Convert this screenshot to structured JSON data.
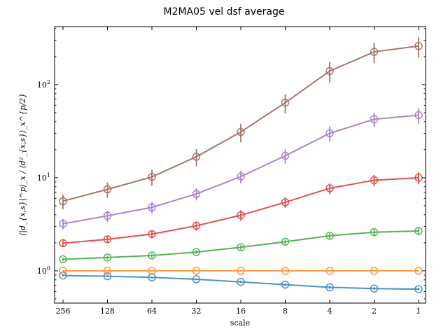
{
  "chart_data": {
    "type": "line",
    "title": "M2MA05 vel dsf average",
    "xlabel": "scale",
    "ylabel": "⟨|d_{x,s}|^p⟩_x / ⟨d²_{x,s}⟩_x^{p/2}",
    "x": [
      256,
      128,
      64,
      32,
      16,
      8,
      4,
      2,
      1
    ],
    "x_tick_labels": [
      "256",
      "128",
      "64",
      "32",
      "16",
      "8",
      "4",
      "2",
      "1"
    ],
    "x_scale": "log2-reversed",
    "y_scale": "log",
    "y_tick_labels": [
      {
        "value": 1,
        "label": "10^0"
      },
      {
        "value": 10,
        "label": "10^1"
      },
      {
        "value": 100,
        "label": "10^2"
      }
    ],
    "ylim": [
      0.45,
      420
    ],
    "series": [
      {
        "color": "#1f77b4",
        "values": [
          0.89,
          0.875,
          0.85,
          0.81,
          0.76,
          0.71,
          0.665,
          0.645,
          0.635
        ],
        "err": [
          0.02,
          0.02,
          0.02,
          0.02,
          0.025,
          0.025,
          0.025,
          0.025,
          0.025
        ]
      },
      {
        "color": "#ff7f0e",
        "values": [
          1.0,
          1.0,
          1.0,
          1.0,
          1.0,
          1.0,
          1.0,
          1.0,
          1.0
        ],
        "err": [
          0.01,
          0.01,
          0.01,
          0.01,
          0.01,
          0.01,
          0.01,
          0.01,
          0.01
        ]
      },
      {
        "color": "#2ca02c",
        "values": [
          1.33,
          1.39,
          1.46,
          1.59,
          1.79,
          2.05,
          2.38,
          2.6,
          2.68
        ],
        "err": [
          0.06,
          0.07,
          0.07,
          0.08,
          0.1,
          0.12,
          0.15,
          0.18,
          0.2
        ]
      },
      {
        "color": "#d62728",
        "values": [
          1.98,
          2.18,
          2.48,
          3.05,
          3.95,
          5.45,
          7.7,
          9.4,
          10.0
        ],
        "err": [
          0.15,
          0.2,
          0.25,
          0.35,
          0.5,
          0.7,
          1.0,
          1.3,
          1.5
        ]
      },
      {
        "color": "#9467bd",
        "values": [
          3.2,
          3.9,
          4.8,
          6.7,
          10.3,
          17.2,
          30.0,
          42.5,
          47.0
        ],
        "err": [
          0.4,
          0.55,
          0.65,
          1.0,
          1.6,
          3.0,
          5.5,
          7.5,
          9.0
        ]
      },
      {
        "color": "#8c564b",
        "values": [
          5.6,
          7.5,
          10.2,
          16.8,
          31.0,
          64.0,
          140.0,
          225.0,
          260.0
        ],
        "err": [
          1.0,
          1.4,
          2.0,
          3.5,
          7.0,
          15.0,
          35.0,
          55.0,
          65.0
        ]
      }
    ]
  }
}
